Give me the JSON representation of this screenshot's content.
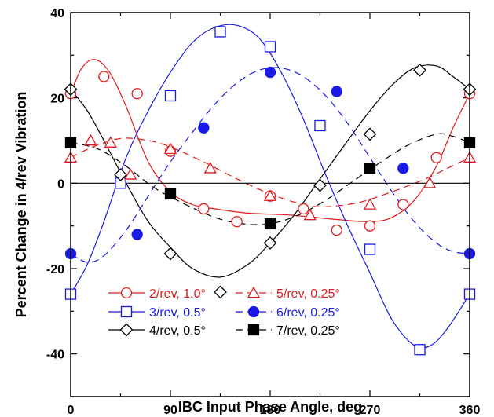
{
  "chart_data": {
    "type": "line",
    "title": "",
    "xlabel": "IBC Input Phase Angle, deg",
    "ylabel": "Percent Change in 4/rev Vibration",
    "xlim": [
      0,
      360
    ],
    "ylim": [
      -50,
      40
    ],
    "xticks": [
      0,
      90,
      180,
      270,
      360
    ],
    "yticks": [
      -40,
      -20,
      0,
      20,
      40
    ],
    "zero_line": true,
    "legend_position": "bottom-center",
    "series": [
      {
        "name": "2/rev, 1.0°",
        "color": "#e41a1c",
        "marker": "circle-open",
        "line": "solid",
        "points": [
          [
            0,
            21
          ],
          [
            30,
            25
          ],
          [
            60,
            21
          ],
          [
            90,
            7.5
          ],
          [
            120,
            -6
          ],
          [
            150,
            -9
          ],
          [
            180,
            -3
          ],
          [
            210,
            -6
          ],
          [
            240,
            -11
          ],
          [
            270,
            -10
          ],
          [
            300,
            -5
          ],
          [
            330,
            6
          ],
          [
            360,
            21
          ]
        ],
        "fit": [
          [
            0,
            21
          ],
          [
            10,
            27
          ],
          [
            22,
            29
          ],
          [
            35,
            26
          ],
          [
            50,
            18
          ],
          [
            70,
            5
          ],
          [
            90,
            -2
          ],
          [
            110,
            -5
          ],
          [
            130,
            -6
          ],
          [
            160,
            -7
          ],
          [
            200,
            -7.5
          ],
          [
            240,
            -8.5
          ],
          [
            270,
            -9
          ],
          [
            290,
            -8
          ],
          [
            310,
            -4
          ],
          [
            330,
            4
          ],
          [
            345,
            13
          ],
          [
            360,
            21
          ]
        ]
      },
      {
        "name": "3/rev, 0.5°",
        "color": "#1a1ae6",
        "marker": "square-open",
        "line": "solid",
        "points": [
          [
            0,
            -26
          ],
          [
            45,
            0
          ],
          [
            90,
            20.5
          ],
          [
            135,
            35.5
          ],
          [
            180,
            32
          ],
          [
            225,
            13.5
          ],
          [
            270,
            -15.5
          ],
          [
            315,
            -39
          ],
          [
            360,
            -26
          ]
        ],
        "fit": [
          [
            0,
            -26
          ],
          [
            15,
            -19
          ],
          [
            30,
            -9
          ],
          [
            50,
            6
          ],
          [
            70,
            17
          ],
          [
            90,
            26
          ],
          [
            110,
            33
          ],
          [
            130,
            36.5
          ],
          [
            150,
            37
          ],
          [
            170,
            34
          ],
          [
            190,
            26
          ],
          [
            210,
            15
          ],
          [
            230,
            2
          ],
          [
            250,
            -10
          ],
          [
            270,
            -21
          ],
          [
            290,
            -32
          ],
          [
            310,
            -38
          ],
          [
            325,
            -38
          ],
          [
            340,
            -34
          ],
          [
            360,
            -26
          ]
        ]
      },
      {
        "name": "4/rev, 0.5°",
        "color": "#000000",
        "marker": "diamond-open",
        "line": "solid",
        "points": [
          [
            0,
            22
          ],
          [
            45,
            2
          ],
          [
            90,
            -16.5
          ],
          [
            135,
            -25.5
          ],
          [
            180,
            -14
          ],
          [
            225,
            -0.5
          ],
          [
            270,
            11.5
          ],
          [
            315,
            26.5
          ],
          [
            360,
            22
          ]
        ],
        "fit": [
          [
            0,
            22
          ],
          [
            15,
            17
          ],
          [
            30,
            10
          ],
          [
            50,
            0
          ],
          [
            70,
            -9
          ],
          [
            90,
            -15
          ],
          [
            110,
            -20
          ],
          [
            135,
            -22
          ],
          [
            160,
            -19
          ],
          [
            180,
            -14
          ],
          [
            200,
            -8
          ],
          [
            225,
            1
          ],
          [
            250,
            10
          ],
          [
            270,
            17
          ],
          [
            290,
            23
          ],
          [
            310,
            27
          ],
          [
            330,
            27.5
          ],
          [
            345,
            25
          ],
          [
            360,
            22
          ]
        ]
      },
      {
        "name": "5/rev, 0.25°",
        "color": "#e41a1c",
        "marker": "triangle-open",
        "line": "dashed",
        "points": [
          [
            0,
            6
          ],
          [
            18,
            10
          ],
          [
            36,
            9.5
          ],
          [
            54,
            2
          ],
          [
            90,
            8
          ],
          [
            126,
            3.5
          ],
          [
            180,
            -3
          ],
          [
            216,
            -7.5
          ],
          [
            270,
            -5
          ],
          [
            324,
            0
          ],
          [
            360,
            6
          ]
        ],
        "fit": [
          [
            0,
            6
          ],
          [
            20,
            8.5
          ],
          [
            45,
            10.5
          ],
          [
            70,
            10
          ],
          [
            90,
            8.5
          ],
          [
            120,
            5
          ],
          [
            150,
            1
          ],
          [
            180,
            -2.5
          ],
          [
            210,
            -5
          ],
          [
            230,
            -5.5
          ],
          [
            260,
            -4.5
          ],
          [
            290,
            -2
          ],
          [
            320,
            1
          ],
          [
            340,
            3.5
          ],
          [
            360,
            6
          ]
        ]
      },
      {
        "name": "6/rev, 0.25°",
        "color": "#1a1ae6",
        "marker": "circle-filled",
        "line": "dashed",
        "points": [
          [
            0,
            -16.5
          ],
          [
            60,
            -12
          ],
          [
            120,
            13
          ],
          [
            180,
            26
          ],
          [
            240,
            21.5
          ],
          [
            300,
            3.5
          ],
          [
            360,
            -16.5
          ]
        ],
        "fit": [
          [
            0,
            -16.5
          ],
          [
            15,
            -18.5
          ],
          [
            30,
            -17
          ],
          [
            50,
            -11
          ],
          [
            70,
            -3
          ],
          [
            90,
            5
          ],
          [
            110,
            12
          ],
          [
            130,
            18.5
          ],
          [
            150,
            23.5
          ],
          [
            170,
            26.5
          ],
          [
            190,
            27
          ],
          [
            210,
            25
          ],
          [
            230,
            20.5
          ],
          [
            250,
            14
          ],
          [
            270,
            6
          ],
          [
            290,
            -2
          ],
          [
            310,
            -9
          ],
          [
            330,
            -14
          ],
          [
            345,
            -16
          ],
          [
            360,
            -16.5
          ]
        ]
      },
      {
        "name": "7/rev, 0.25°",
        "color": "#000000",
        "marker": "square-filled",
        "line": "dashed",
        "points": [
          [
            0,
            9.5
          ],
          [
            90,
            -2.5
          ],
          [
            180,
            -9.5
          ],
          [
            270,
            3.5
          ],
          [
            360,
            9.5
          ]
        ],
        "fit": [
          [
            0,
            9.5
          ],
          [
            25,
            8
          ],
          [
            50,
            4
          ],
          [
            75,
            -1
          ],
          [
            100,
            -4.5
          ],
          [
            130,
            -8
          ],
          [
            155,
            -9.5
          ],
          [
            180,
            -9.5
          ],
          [
            205,
            -7.5
          ],
          [
            230,
            -4
          ],
          [
            255,
            0.5
          ],
          [
            280,
            5
          ],
          [
            305,
            9
          ],
          [
            330,
            11.5
          ],
          [
            345,
            11
          ],
          [
            360,
            9.5
          ]
        ]
      }
    ]
  }
}
